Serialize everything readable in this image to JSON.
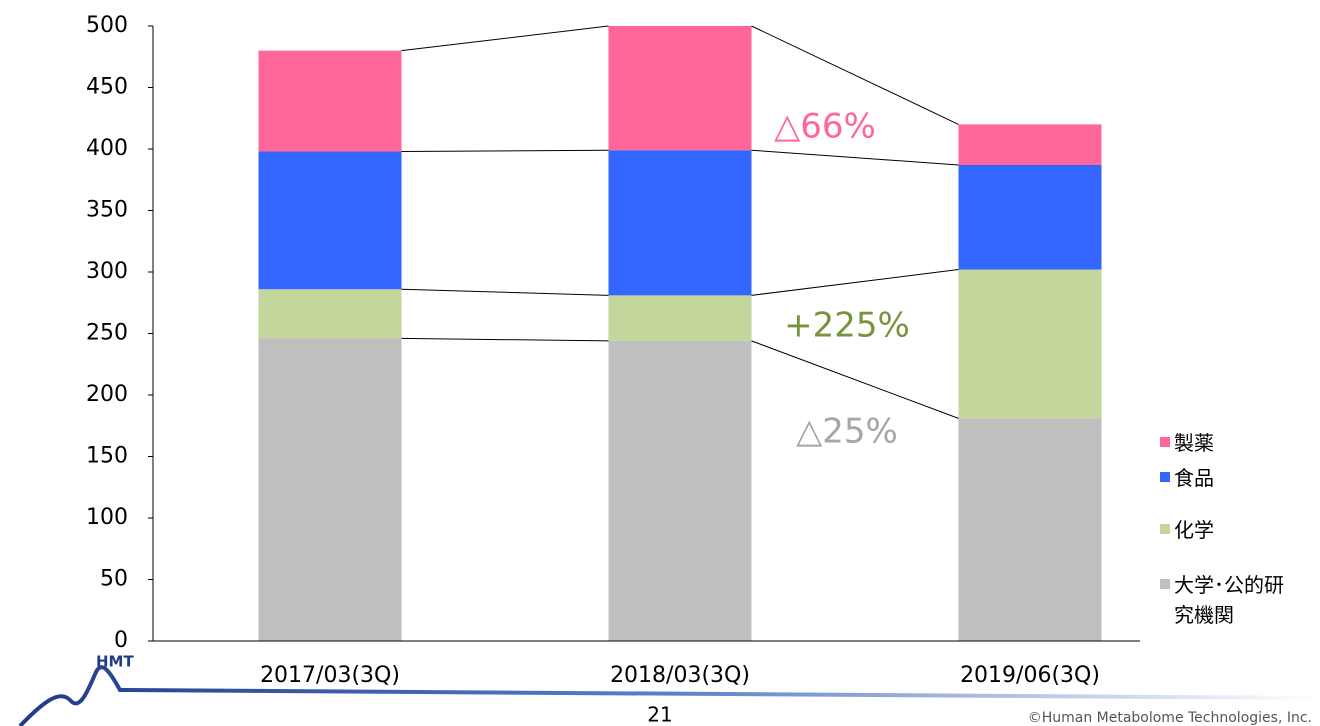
{
  "chart_data": {
    "type": "stacked_bar",
    "categories": [
      "2017/03(3Q)",
      "2018/03(3Q)",
      "2019/06(3Q)"
    ],
    "series": [
      {
        "name": "大学･公的研究機関",
        "color": "#bfbfbf",
        "values": [
          246,
          244,
          181
        ]
      },
      {
        "name": "化学",
        "color": "#c3d69b",
        "values": [
          40,
          37,
          121
        ]
      },
      {
        "name": "食品",
        "color": "#3366ff",
        "values": [
          112,
          118,
          85
        ]
      },
      {
        "name": "製薬",
        "color": "#ff6699",
        "values": [
          82,
          101,
          33
        ]
      }
    ],
    "ylim": [
      0,
      500
    ],
    "yticks": [
      0,
      50,
      100,
      150,
      200,
      250,
      300,
      350,
      400,
      450,
      500
    ],
    "annotations": [
      {
        "text": "△66%",
        "color": "#ff6699"
      },
      {
        "text": "+225%",
        "color": "#77933c"
      },
      {
        "text": "△25%",
        "color": "#a6a6a6"
      }
    ]
  },
  "footer": {
    "logo": "HMT",
    "page": "21",
    "copyright": "©Human Metabolome Technologies, Inc."
  }
}
